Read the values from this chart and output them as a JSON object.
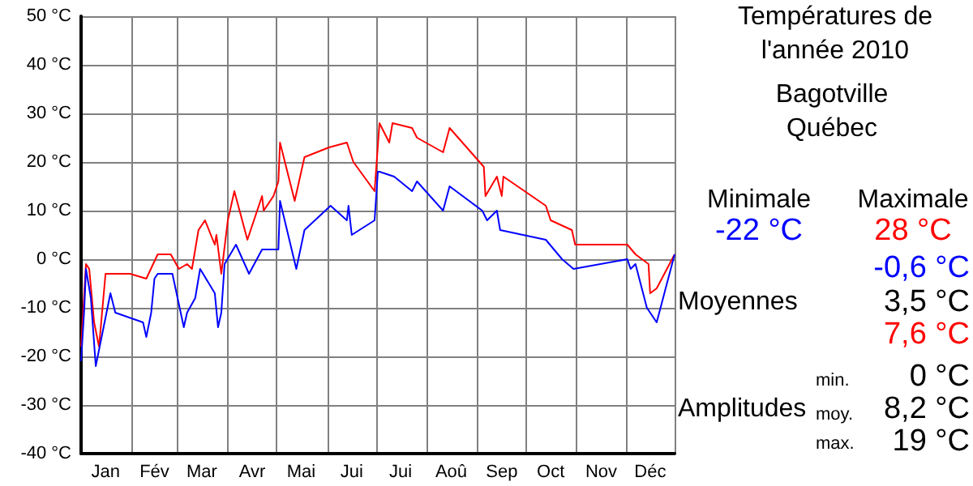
{
  "chart_data": {
    "type": "line",
    "title": "Températures de l'année 2010",
    "subtitle": "Bagotville Québec",
    "series": [
      {
        "color": "#ff0000",
        "x": [
          "--01-01",
          "--01-04",
          "--01-06",
          "--01-09",
          "--01-12",
          "--01-16",
          "--01-31",
          "--02-10",
          "--02-17",
          "--02-25",
          "--03-02",
          "--03-07",
          "--03-10",
          "--03-14",
          "--03-18",
          "--03-24",
          "--03-25",
          "--03-28",
          "--04-01",
          "--04-05",
          "--04-13",
          "--04-22",
          "--04-23",
          "--04-29",
          "--05-02",
          "--05-03",
          "--05-12",
          "--05-18",
          "--06-02",
          "--06-13",
          "--06-17",
          "--06-30",
          "--07-03",
          "--07-09",
          "--07-11",
          "--07-23",
          "--07-26",
          "--08-11",
          "--08-15",
          "--09-05",
          "--09-06",
          "--09-13",
          "--09-16",
          "--09-17",
          "--10-13",
          "--10-16",
          "--10-29",
          "--10-31",
          "--12-02",
          "--12-07",
          "--12-15",
          "--12-16",
          "--12-20",
          "--12-31"
        ],
        "values": [
          -18,
          -1,
          -2,
          -13,
          -18,
          -3,
          -3,
          -4,
          1,
          1,
          -2,
          -1,
          -2,
          6,
          8,
          3,
          5,
          -3,
          8,
          14,
          4,
          13,
          10,
          13,
          16,
          24,
          12,
          21,
          23,
          24,
          20,
          14,
          28,
          24,
          28,
          27,
          25,
          22,
          27,
          19,
          13,
          17,
          13,
          17,
          11,
          8,
          6,
          3,
          3,
          1,
          -1,
          -7,
          -6,
          1
        ]
      },
      {
        "color": "#0000ff",
        "x": [
          "--01-01",
          "--01-03",
          "--01-04",
          "--01-07",
          "--01-10",
          "--01-16",
          "--01-19",
          "--01-22",
          "--02-08",
          "--02-10",
          "--02-13",
          "--02-15",
          "--02-17",
          "--02-26",
          "--03-05",
          "--03-07",
          "--03-12",
          "--03-15",
          "--03-24",
          "--03-26",
          "--03-28",
          "--03-30",
          "--04-06",
          "--04-14",
          "--04-22",
          "--05-02",
          "--05-03",
          "--05-13",
          "--05-18",
          "--06-03",
          "--06-13",
          "--06-14",
          "--06-16",
          "--06-30",
          "--07-02",
          "--07-03",
          "--07-12",
          "--07-23",
          "--07-26",
          "--08-11",
          "--08-15",
          "--09-04",
          "--09-07",
          "--09-13",
          "--09-15",
          "--10-13",
          "--10-23",
          "--10-30",
          "--12-02",
          "--12-04",
          "--12-07",
          "--12-14",
          "--12-20",
          "--12-31"
        ],
        "values": [
          -21,
          -10,
          -2,
          -8,
          -22,
          -12,
          -7,
          -11,
          -13,
          -16,
          -11,
          -4,
          -3,
          -3,
          -14,
          -11,
          -8,
          -2,
          -7,
          -14,
          -11,
          -1,
          3,
          -3,
          2,
          2,
          12,
          -2,
          6,
          11,
          8,
          11,
          5,
          8,
          18,
          18,
          17,
          14,
          16,
          10,
          15,
          10,
          8,
          10,
          6,
          4,
          0,
          -2,
          0,
          -2,
          -1,
          -10,
          -13,
          1
        ]
      }
    ],
    "xlim": [
      "--01-01",
      "--12-31"
    ],
    "xticks": [
      {
        "value": "--01-01",
        "label": null
      },
      {
        "value": "--01-16",
        "label": "Jan"
      },
      {
        "value": "--02-01",
        "label": null
      },
      {
        "value": "--02-15",
        "label": "Fév"
      },
      {
        "value": "--03-01",
        "label": null
      },
      {
        "value": "--03-16",
        "label": "Mar"
      },
      {
        "value": "--04-01",
        "label": null
      },
      {
        "value": "--04-16",
        "label": "Avr"
      },
      {
        "value": "--05-01",
        "label": null
      },
      {
        "value": "--05-16",
        "label": "Mai"
      },
      {
        "value": "--06-01",
        "label": null
      },
      {
        "value": "--06-16",
        "label": "Jui"
      },
      {
        "value": "--07-01",
        "label": null
      },
      {
        "value": "--07-16",
        "label": "Jui"
      },
      {
        "value": "--08-01",
        "label": null
      },
      {
        "value": "--08-16",
        "label": "Aoû"
      },
      {
        "value": "--09-01",
        "label": null
      },
      {
        "value": "--09-16",
        "label": "Sep"
      },
      {
        "value": "--10-01",
        "label": null
      },
      {
        "value": "--10-16",
        "label": "Oct"
      },
      {
        "value": "--11-01",
        "label": null
      },
      {
        "value": "--11-16",
        "label": "Nov"
      },
      {
        "value": "--12-01",
        "label": null
      },
      {
        "value": "--12-16",
        "label": "Déc"
      },
      {
        "value": "--12-31",
        "label": null
      }
    ],
    "ylim": [
      -40,
      50
    ],
    "yticks": [
      {
        "value": -40,
        "label": "-40 °C"
      },
      {
        "value": -30,
        "label": "-30 °C"
      },
      {
        "value": -20,
        "label": "-20 °C"
      },
      {
        "value": -10,
        "label": "-10 °C"
      },
      {
        "value": 0,
        "label": "0 °C"
      },
      {
        "value": 10,
        "label": "10 °C"
      },
      {
        "value": 20,
        "label": "20 °C"
      },
      {
        "value": 30,
        "label": "30 °C"
      },
      {
        "value": 40,
        "label": "40 °C"
      },
      {
        "value": 50,
        "label": "50 °C"
      }
    ],
    "grid": true,
    "marker": "none",
    "line_style": "solid",
    "annotations": [
      "Minimale",
      "Maximale",
      "-22 °C",
      "28 °C",
      "-0,6 °C",
      "Moyennes",
      "3,5 °C",
      "7,6 °C",
      "min.",
      "0 °C",
      "Amplitudes",
      "moy.",
      "8,2 °C",
      "max.",
      "19 °C"
    ]
  }
}
